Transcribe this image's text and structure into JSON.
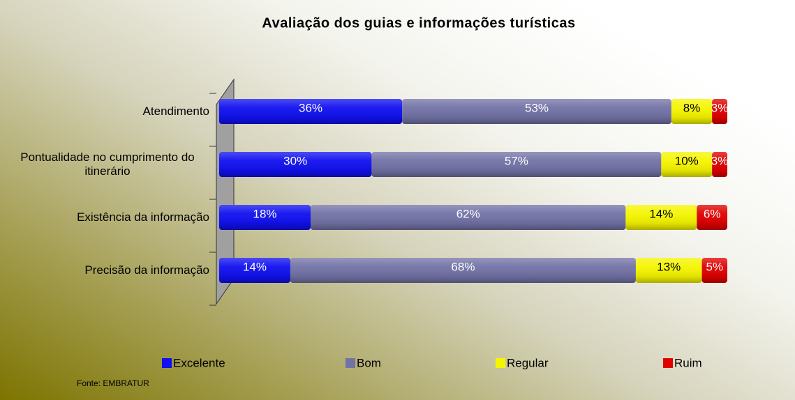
{
  "chart_data": {
    "type": "bar",
    "orientation": "horizontal",
    "stacked": true,
    "title": "Avaliação dos guias e informações turísticas",
    "categories": [
      "Atendimento",
      "Pontualidade no cumprimento do itinerário",
      "Existência da informação",
      "Precisão da informação"
    ],
    "series": [
      {
        "name": "Excelente",
        "color": "#1010f0",
        "values": [
          36,
          30,
          18,
          14
        ],
        "value_labels": [
          "36%",
          "30%",
          "18%",
          "14%"
        ]
      },
      {
        "name": "Bom",
        "color": "#7272a6",
        "values": [
          53,
          57,
          62,
          68
        ],
        "value_labels": [
          "53%",
          "57%",
          "62%",
          "68%"
        ]
      },
      {
        "name": "Regular",
        "color": "#f5f500",
        "values": [
          8,
          10,
          14,
          13
        ],
        "value_labels": [
          "8%",
          "10%",
          "14%",
          "13%"
        ]
      },
      {
        "name": "Ruim",
        "color": "#e00000",
        "values": [
          3,
          3,
          6,
          5
        ],
        "value_labels": [
          "3%",
          "3%",
          "6%",
          "5%"
        ]
      }
    ],
    "legend": "bottom",
    "source": "Fonte: EMBRATUR"
  }
}
